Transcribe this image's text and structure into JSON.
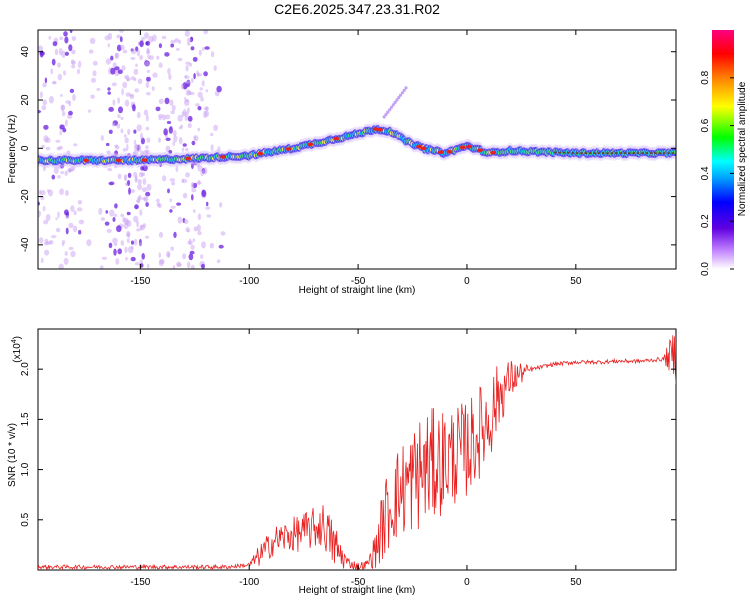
{
  "title": "C2E6.2025.347.23.31.R02",
  "chart_data": [
    {
      "type": "heatmap",
      "name": "spectrogram",
      "xlabel": "Height of straight line (km)",
      "ylabel": "Frequency (Hz)",
      "xlim": [
        -197,
        96
      ],
      "ylim": [
        -50,
        49
      ],
      "xticks": [
        -150,
        -100,
        -50,
        0,
        50
      ],
      "yticks": [
        -40,
        -20,
        0,
        20,
        40
      ],
      "colorbar": {
        "label": "Normalized spectral amplitude",
        "range": [
          0,
          1
        ],
        "ticks": [
          "0.0",
          "0.2",
          "0.4",
          "0.6",
          "0.8"
        ],
        "tick_values": [
          0,
          0.2,
          0.4,
          0.6,
          0.8
        ]
      },
      "ridge": {
        "x": [
          -197,
          -150,
          -120,
          -100,
          -80,
          -65,
          -50,
          -42,
          -35,
          -28,
          -20,
          -10,
          0,
          10,
          20,
          50,
          96
        ],
        "y": [
          -5,
          -5,
          -4,
          -3,
          0,
          3,
          6,
          8,
          7,
          3,
          0,
          -2,
          1,
          -2,
          -1,
          -2,
          -2
        ]
      },
      "streak": {
        "x": [
          -38,
          -28
        ],
        "y": [
          13,
          25
        ]
      }
    },
    {
      "type": "line",
      "name": "snr",
      "xlabel": "Height of straight line (km)",
      "ylabel": "SNR (10 * v/v)",
      "scale_label": "(x10",
      "scale_exp": "4",
      "scale_close": ")",
      "xlim": [
        -197,
        96
      ],
      "ylim": [
        0,
        2.4
      ],
      "xticks": [
        -150,
        -100,
        -50,
        0,
        50
      ],
      "yticks": [
        "0.5",
        "1.0",
        "1.5",
        "2.0"
      ],
      "ytick_values": [
        0.5,
        1.0,
        1.5,
        2.0
      ],
      "envelope": {
        "x": [
          -197,
          -110,
          -100,
          -95,
          -88,
          -80,
          -72,
          -66,
          -60,
          -55,
          -50,
          -46,
          -42,
          -38,
          -34,
          -30,
          -25,
          -20,
          -10,
          0,
          5,
          10,
          15,
          20,
          25,
          30,
          40,
          50,
          60,
          70,
          80,
          90,
          96
        ],
        "y": [
          0.03,
          0.03,
          0.05,
          0.15,
          0.3,
          0.35,
          0.4,
          0.45,
          0.2,
          0.08,
          0.03,
          0.05,
          0.2,
          0.5,
          0.7,
          0.8,
          0.9,
          1.0,
          1.1,
          1.2,
          1.35,
          1.5,
          1.75,
          1.9,
          1.96,
          2.0,
          2.05,
          2.07,
          2.07,
          2.08,
          2.08,
          2.1,
          2.15
        ]
      },
      "noise_amplitude": {
        "x": [
          -197,
          -100,
          -95,
          -60,
          -55,
          -45,
          -38,
          -20,
          -5,
          10,
          20,
          30,
          90,
          96
        ],
        "y": [
          0.02,
          0.02,
          0.12,
          0.25,
          0.05,
          0.05,
          0.4,
          0.6,
          0.5,
          0.45,
          0.2,
          0.02,
          0.02,
          0.3
        ]
      },
      "color": "#e82020"
    }
  ],
  "colors": {
    "line": "#e82020",
    "scatter": "#7a2ae0",
    "ridge_low": "#2040ff",
    "ridge_mid": "#30e060",
    "ridge_high": "#e02020"
  }
}
